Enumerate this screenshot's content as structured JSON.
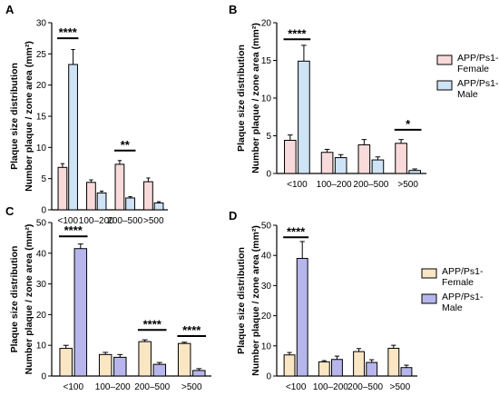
{
  "chart_data": [
    {
      "panel": "A",
      "type": "bar",
      "ylabel": [
        "Plaque size distribution",
        "Number plaque / zone area (mm²)"
      ],
      "categories": [
        "<100",
        "100–200",
        "200–500",
        ">500"
      ],
      "ylim": [
        0,
        30
      ],
      "yticks": [
        0,
        5,
        10,
        15,
        20,
        25,
        30
      ],
      "series": [
        {
          "name": "APP/Ps1-Female",
          "color": "#f9dada",
          "values": [
            6.8,
            4.4,
            7.3,
            4.5
          ],
          "errors": [
            0.6,
            0.4,
            0.6,
            0.6
          ]
        },
        {
          "name": "APP/Ps1-Male",
          "color": "#cfe3f6",
          "values": [
            23.3,
            2.7,
            1.9,
            1.1
          ],
          "errors": [
            2.4,
            0.3,
            0.2,
            0.2
          ]
        }
      ],
      "significance": [
        {
          "category": 0,
          "label": "****",
          "value": 27.5
        },
        {
          "category": 2,
          "label": "**",
          "value": 9.5
        }
      ]
    },
    {
      "panel": "B",
      "type": "bar",
      "ylabel": [
        "Plaque size distribution",
        "Number plaque / zone area (mm²)"
      ],
      "categories": [
        "<100",
        "100–200",
        "200–500",
        ">500"
      ],
      "ylim": [
        0,
        20
      ],
      "yticks": [
        0,
        5,
        10,
        15,
        20
      ],
      "series": [
        {
          "name": "APP/Ps1-Female",
          "color": "#f9dada",
          "values": [
            4.4,
            2.8,
            3.8,
            4.0
          ],
          "errors": [
            0.7,
            0.4,
            0.7,
            0.5
          ]
        },
        {
          "name": "APP/Ps1-Male",
          "color": "#cfe3f6",
          "values": [
            14.9,
            2.1,
            1.8,
            0.4
          ],
          "errors": [
            2.1,
            0.4,
            0.4,
            0.2
          ]
        }
      ],
      "significance": [
        {
          "category": 0,
          "label": "****",
          "value": 17.8
        },
        {
          "category": 3,
          "label": "*",
          "value": 5.8
        }
      ],
      "legend": {
        "position": "right",
        "entries": [
          {
            "line1": "APP/Ps1-",
            "line2": "Female",
            "color": "#f9dada"
          },
          {
            "line1": "APP/Ps1-",
            "line2": "Male",
            "color": "#cfe3f6"
          }
        ]
      }
    },
    {
      "panel": "C",
      "type": "bar",
      "ylabel": [
        "Plaque size distribution",
        "Number plaque / zone area (mm²)"
      ],
      "categories": [
        "<100",
        "100–200",
        "200–500",
        ">500"
      ],
      "ylim": [
        0,
        50
      ],
      "yticks": [
        0,
        10,
        20,
        30,
        40,
        50
      ],
      "series": [
        {
          "name": "APP/Ps1-Female",
          "color": "#fbe6c4",
          "values": [
            9.0,
            7.0,
            11.2,
            10.6
          ],
          "errors": [
            1.0,
            0.7,
            0.6,
            0.4
          ]
        },
        {
          "name": "APP/Ps1-Male",
          "color": "#b7b6ec",
          "values": [
            41.5,
            6.1,
            3.8,
            1.8
          ],
          "errors": [
            1.5,
            0.9,
            0.6,
            0.6
          ]
        }
      ],
      "significance": [
        {
          "category": 0,
          "label": "****",
          "value": 45.5
        },
        {
          "category": 2,
          "label": "****",
          "value": 15.0
        },
        {
          "category": 3,
          "label": "****",
          "value": 13.0
        }
      ]
    },
    {
      "panel": "D",
      "type": "bar",
      "ylabel": [
        "Plaque size distribution",
        "Number plaque / zone area (mm²)"
      ],
      "categories": [
        "<100",
        "100–200",
        "200–500",
        ">500"
      ],
      "ylim": [
        0,
        50
      ],
      "yticks": [
        0,
        10,
        20,
        30,
        40,
        50
      ],
      "series": [
        {
          "name": "APP/Ps1-Female",
          "color": "#fbe6c4",
          "values": [
            7.0,
            4.7,
            8.1,
            9.2
          ],
          "errors": [
            0.8,
            0.4,
            1.0,
            1.0
          ]
        },
        {
          "name": "APP/Ps1-Male",
          "color": "#b7b6ec",
          "values": [
            39.0,
            5.5,
            4.5,
            2.8
          ],
          "errors": [
            5.6,
            1.1,
            0.9,
            0.8
          ]
        }
      ],
      "significance": [
        {
          "category": 0,
          "label": "****",
          "value": 46.0
        }
      ],
      "legend": {
        "position": "right",
        "entries": [
          {
            "line1": "APP/Ps1-",
            "line2": "Female",
            "color": "#fbe6c4"
          },
          {
            "line1": "APP/Ps1-",
            "line2": "Male",
            "color": "#b7b6ec"
          }
        ]
      }
    }
  ]
}
